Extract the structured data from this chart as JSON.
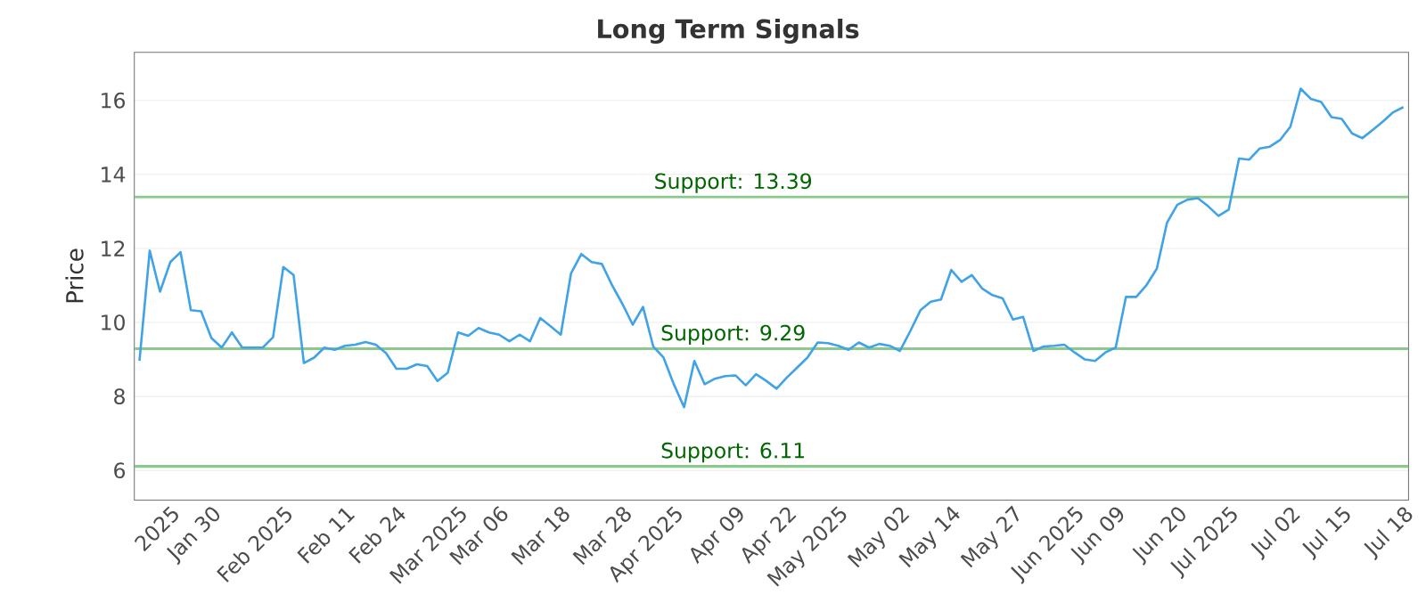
{
  "chart_data": {
    "type": "line",
    "title": "Long Term Signals",
    "ylabel": "Price",
    "categories": [
      null,
      null,
      null,
      "2025",
      null,
      null,
      null,
      "Jan 30",
      null,
      null,
      null,
      null,
      null,
      null,
      "Feb 2025",
      null,
      null,
      null,
      null,
      null,
      "Feb 11",
      null,
      null,
      null,
      null,
      "Feb 24",
      null,
      null,
      null,
      null,
      null,
      "Mar 2025",
      null,
      null,
      null,
      "Mar 06",
      null,
      null,
      null,
      null,
      null,
      "Mar 18",
      null,
      null,
      null,
      null,
      null,
      "Mar 28",
      null,
      null,
      null,
      null,
      "Apr 2025",
      null,
      null,
      null,
      null,
      null,
      "Apr 09",
      null,
      null,
      null,
      null,
      "Apr 22",
      null,
      null,
      null,
      null,
      "May 2025",
      null,
      null,
      null,
      null,
      null,
      "May 02",
      null,
      null,
      null,
      null,
      "May 14",
      null,
      null,
      null,
      null,
      null,
      "May 27",
      null,
      null,
      null,
      null,
      null,
      "Jun 2025",
      null,
      null,
      null,
      "Jun 09",
      null,
      null,
      null,
      null,
      null,
      "Jun 20",
      null,
      null,
      null,
      null,
      "Jul 2025",
      null,
      null,
      null,
      null,
      null,
      "Jul 02",
      null,
      null,
      null,
      null,
      "Jul 15",
      null,
      null,
      null,
      null,
      null,
      "Jul 18"
    ],
    "series": [
      {
        "color": "#3fa3e6",
        "values": [
          8.96,
          11.94,
          10.83,
          11.63,
          11.9,
          10.33,
          10.3,
          9.58,
          9.32,
          9.73,
          9.32,
          9.32,
          9.32,
          9.6,
          11.5,
          11.28,
          8.9,
          9.05,
          9.32,
          9.26,
          9.37,
          9.4,
          9.47,
          9.4,
          9.17,
          8.75,
          8.75,
          8.87,
          8.82,
          8.42,
          8.64,
          9.73,
          9.64,
          9.85,
          9.73,
          9.67,
          9.49,
          9.67,
          9.49,
          10.12,
          9.9,
          9.67,
          11.33,
          11.85,
          11.63,
          11.58,
          11.0,
          10.5,
          9.94,
          10.42,
          9.35,
          9.05,
          8.33,
          7.71,
          8.96,
          8.33,
          8.48,
          8.55,
          8.57,
          8.3,
          8.6,
          8.42,
          8.21,
          8.51,
          8.78,
          9.05,
          9.46,
          9.44,
          9.37,
          9.26,
          9.46,
          9.32,
          9.42,
          9.37,
          9.23,
          9.76,
          10.33,
          10.56,
          10.62,
          11.42,
          11.1,
          11.28,
          10.92,
          10.74,
          10.65,
          10.08,
          10.15,
          9.23,
          9.35,
          9.37,
          9.4,
          9.19,
          9.0,
          8.96,
          9.19,
          9.32,
          10.69,
          10.69,
          11.01,
          11.45,
          12.7,
          13.18,
          13.32,
          13.36,
          13.14,
          12.88,
          13.05,
          14.43,
          14.4,
          14.7,
          14.75,
          14.93,
          15.29,
          16.32,
          16.04,
          15.96,
          15.55,
          15.5,
          15.11,
          14.98,
          15.2,
          15.43,
          15.68,
          15.82
        ]
      }
    ],
    "ylim": [
      5.2,
      17.3
    ],
    "yticks": [
      6,
      8,
      10,
      12,
      14,
      16
    ],
    "grid": "y",
    "marker": "none",
    "line_style": "solid",
    "ref_lines": [
      {
        "axis": "y",
        "value": 13.39,
        "label": "Support: 13.39",
        "color": "#8cc98c"
      },
      {
        "axis": "y",
        "value": 9.29,
        "label": "Support: 9.29",
        "color": "#8cc98c"
      },
      {
        "axis": "y",
        "value": 6.11,
        "label": "Support: 6.11",
        "color": "#8cc98c"
      }
    ]
  }
}
